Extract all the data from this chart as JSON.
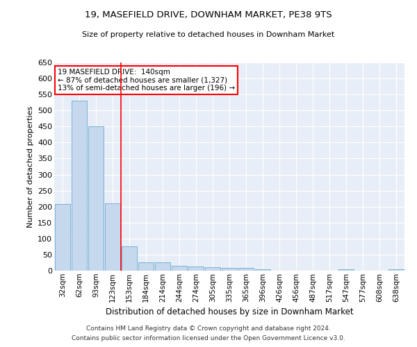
{
  "title1": "19, MASEFIELD DRIVE, DOWNHAM MARKET, PE38 9TS",
  "title2": "Size of property relative to detached houses in Downham Market",
  "xlabel": "Distribution of detached houses by size in Downham Market",
  "ylabel": "Number of detached properties",
  "categories": [
    "32sqm",
    "62sqm",
    "93sqm",
    "123sqm",
    "153sqm",
    "184sqm",
    "214sqm",
    "244sqm",
    "274sqm",
    "305sqm",
    "335sqm",
    "365sqm",
    "396sqm",
    "426sqm",
    "456sqm",
    "487sqm",
    "517sqm",
    "547sqm",
    "577sqm",
    "608sqm",
    "638sqm"
  ],
  "values": [
    207,
    530,
    450,
    210,
    75,
    27,
    27,
    15,
    12,
    10,
    8,
    8,
    5,
    1,
    0,
    0,
    0,
    5,
    0,
    0,
    5
  ],
  "bar_color": "#c5d8ee",
  "bar_edge_color": "#6baad0",
  "background_color": "#e8eef7",
  "grid_color": "#ffffff",
  "annotation_line1": "19 MASEFIELD DRIVE:  140sqm",
  "annotation_line2": "← 87% of detached houses are smaller (1,327)",
  "annotation_line3": "13% of semi-detached houses are larger (196) →",
  "redline_index": 3.5,
  "ylim": [
    0,
    650
  ],
  "yticks": [
    0,
    50,
    100,
    150,
    200,
    250,
    300,
    350,
    400,
    450,
    500,
    550,
    600,
    650
  ],
  "footnote1": "Contains HM Land Registry data © Crown copyright and database right 2024.",
  "footnote2": "Contains public sector information licensed under the Open Government Licence v3.0."
}
